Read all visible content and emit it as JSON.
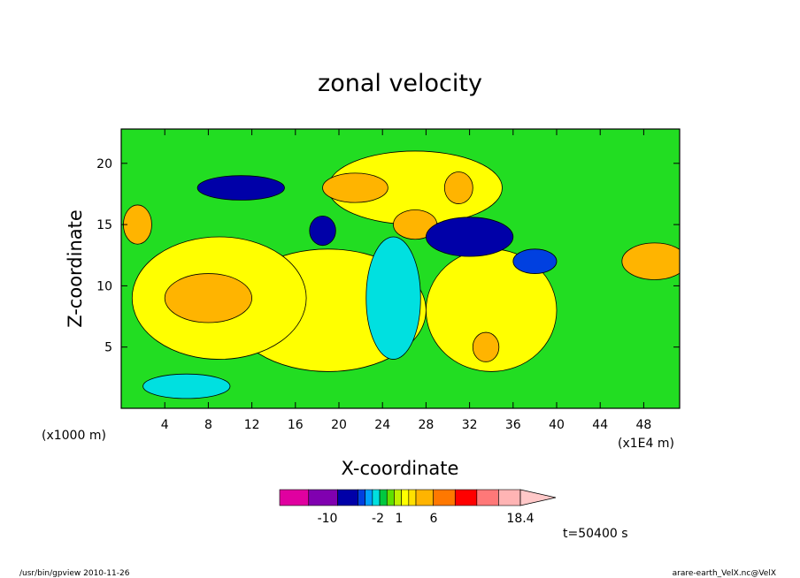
{
  "chart_data": {
    "type": "heatmap",
    "title": "zonal velocity",
    "xlabel": "X-coordinate",
    "ylabel": "Z-coordinate",
    "x_unit_left": "(x1000 m)",
    "x_unit_right": "(x1E4 m)",
    "xlim": [
      0,
      51.3
    ],
    "ylim": [
      0,
      22.8
    ],
    "x_ticks": [
      "4",
      "8",
      "12",
      "16",
      "20",
      "24",
      "28",
      "32",
      "36",
      "40",
      "44",
      "48"
    ],
    "y_ticks": [
      "5",
      "10",
      "15",
      "20"
    ],
    "contour_levels": [
      -14,
      -10,
      -6,
      -2,
      -1.5,
      -1,
      -0.5,
      0,
      0.5,
      1,
      2,
      4,
      6,
      10,
      14,
      18.4
    ],
    "colorbar": {
      "bins": [
        {
          "color": "#e000a0"
        },
        {
          "color": "#8000b0"
        },
        {
          "color": "#0000a8"
        },
        {
          "color": "#0040e0"
        },
        {
          "color": "#00a0ff"
        },
        {
          "color": "#00e0e0"
        },
        {
          "color": "#00c840"
        },
        {
          "color": "#60e000"
        },
        {
          "color": "#c0f000"
        },
        {
          "color": "#ffff00"
        },
        {
          "color": "#ffe000"
        },
        {
          "color": "#ffb400"
        },
        {
          "color": "#ff7800"
        },
        {
          "color": "#ff0000"
        },
        {
          "color": "#ff7878"
        },
        {
          "color": "#ffb4b4"
        }
      ],
      "labels": [
        "-10",
        "-2",
        "1",
        "6",
        "18.4"
      ]
    },
    "fields": {
      "background": "#22dd22",
      "regions": [
        {
          "kind": "positive",
          "color": "#ffff00",
          "x": 19,
          "z": 8,
          "rx": 9,
          "rz": 5
        },
        {
          "kind": "positive",
          "color": "#ffff00",
          "x": 34,
          "z": 8,
          "rx": 6,
          "rz": 5
        },
        {
          "kind": "positive",
          "color": "#ffff00",
          "x": 9,
          "z": 9,
          "rx": 8,
          "rz": 5
        },
        {
          "kind": "positive",
          "color": "#ffff00",
          "x": 27,
          "z": 18,
          "rx": 8,
          "rz": 3
        },
        {
          "kind": "positive",
          "color": "#ffb400",
          "x": 8,
          "z": 9,
          "rx": 4,
          "rz": 2
        },
        {
          "kind": "positive",
          "color": "#ffb400",
          "x": 21.5,
          "z": 18,
          "rx": 3,
          "rz": 1.2
        },
        {
          "kind": "positive",
          "color": "#ffb400",
          "x": 27,
          "z": 15,
          "rx": 2,
          "rz": 1.2
        },
        {
          "kind": "positive",
          "color": "#ffb400",
          "x": 31,
          "z": 18,
          "rx": 1.3,
          "rz": 1.3
        },
        {
          "kind": "positive",
          "color": "#ffb400",
          "x": 1.5,
          "z": 15,
          "rx": 1.3,
          "rz": 1.6
        },
        {
          "kind": "positive",
          "color": "#ffb400",
          "x": 49,
          "z": 12,
          "rx": 3,
          "rz": 1.5
        },
        {
          "kind": "positive",
          "color": "#ffb400",
          "x": 33.5,
          "z": 5,
          "rx": 1.2,
          "rz": 1.2
        },
        {
          "kind": "negative",
          "color": "#00e0e0",
          "x": 25,
          "z": 9,
          "rx": 2.5,
          "rz": 5
        },
        {
          "kind": "negative",
          "color": "#00e0e0",
          "x": 6,
          "z": 1.8,
          "rx": 4,
          "rz": 1
        },
        {
          "kind": "negative",
          "color": "#0000a8",
          "x": 32,
          "z": 14,
          "rx": 4,
          "rz": 1.6
        },
        {
          "kind": "negative",
          "color": "#0000a8",
          "x": 11,
          "z": 18,
          "rx": 4,
          "rz": 1
        },
        {
          "kind": "negative",
          "color": "#0000a8",
          "x": 18.5,
          "z": 14.5,
          "rx": 1.2,
          "rz": 1.2
        },
        {
          "kind": "negative",
          "color": "#0040e0",
          "x": 38,
          "z": 12,
          "rx": 2,
          "rz": 1
        }
      ]
    }
  },
  "footer": {
    "program": "/usr/bin/gpview   2010-11-26",
    "source": "arare-earth_VelX.nc@VelX"
  },
  "time_label": "t=50400 s"
}
